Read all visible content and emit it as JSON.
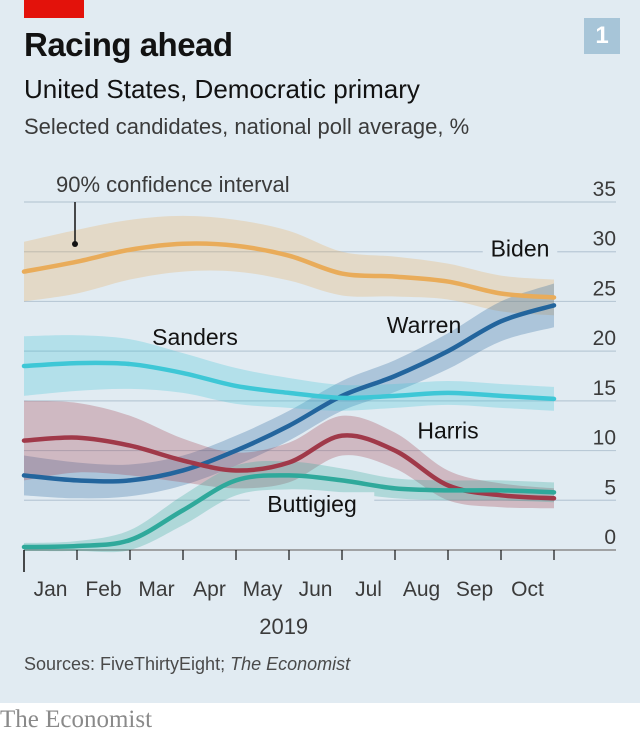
{
  "header": {
    "chart_number": "1",
    "title": "Racing ahead",
    "subtitle": "United States, Democratic primary",
    "description": "Selected candidates, national poll average, %"
  },
  "annotation": "90% confidence interval",
  "footer": {
    "sources_label": "Sources: FiveThirtyEight; ",
    "sources_italic": "The Economist",
    "brand": "The Economist"
  },
  "colors": {
    "background": "#e1ebf2",
    "Biden": "#e9ac5a",
    "Warren": "#23659d",
    "Sanders": "#3ec7d6",
    "Harris": "#a03949",
    "Buttigieg": "#2fa99b",
    "accent": "#e3120b"
  },
  "chart_data": {
    "type": "line",
    "title": "Racing ahead",
    "subtitle": "United States, Democratic primary",
    "ylabel": "Selected candidates, national poll average, %",
    "xlabel": "2019",
    "x": [
      0,
      1,
      2,
      3,
      4,
      5,
      6,
      7,
      8,
      9,
      10
    ],
    "x_tick_labels": [
      "Jan",
      "Feb",
      "Mar",
      "Apr",
      "May",
      "Jun",
      "Jul",
      "Aug",
      "Sep",
      "Oct"
    ],
    "year_label": "2019",
    "y_ticks": [
      0,
      5,
      10,
      15,
      20,
      25,
      30,
      35
    ],
    "ylim": [
      0,
      35
    ],
    "grid": true,
    "series": [
      {
        "name": "Biden",
        "values": [
          28.0,
          29.0,
          30.2,
          30.8,
          30.6,
          29.6,
          27.8,
          27.5,
          27.0,
          25.8,
          25.4
        ],
        "ci_width": [
          3.0,
          3.2,
          3.0,
          2.8,
          2.6,
          2.5,
          2.2,
          2.0,
          1.8,
          1.8,
          1.8
        ]
      },
      {
        "name": "Warren",
        "values": [
          7.5,
          7.0,
          7.0,
          8.0,
          10.0,
          12.5,
          15.5,
          17.5,
          20.0,
          23.0,
          24.6
        ],
        "ci_width": [
          2.0,
          1.8,
          1.6,
          1.5,
          1.5,
          1.5,
          1.5,
          1.6,
          1.8,
          2.0,
          2.2
        ]
      },
      {
        "name": "Sanders",
        "values": [
          18.5,
          18.8,
          18.7,
          17.8,
          16.5,
          15.8,
          15.3,
          15.5,
          15.8,
          15.5,
          15.2
        ],
        "ci_width": [
          3.0,
          2.8,
          2.5,
          2.0,
          1.8,
          1.5,
          1.3,
          1.2,
          1.2,
          1.2,
          1.2
        ]
      },
      {
        "name": "Harris",
        "values": [
          11.0,
          11.3,
          10.5,
          9.0,
          8.0,
          8.8,
          11.5,
          10.0,
          6.5,
          5.5,
          5.2
        ],
        "ci_width": [
          4.0,
          3.5,
          3.0,
          2.2,
          1.8,
          2.0,
          2.0,
          1.8,
          1.5,
          1.2,
          1.0
        ]
      },
      {
        "name": "Buttigieg",
        "values": [
          0.3,
          0.4,
          1.0,
          4.0,
          7.0,
          7.5,
          7.0,
          6.2,
          6.0,
          6.0,
          5.8
        ],
        "ci_width": [
          0.4,
          0.5,
          1.0,
          1.5,
          1.5,
          1.4,
          1.2,
          1.0,
          1.0,
          1.0,
          1.0
        ]
      }
    ],
    "series_labels": [
      "Biden",
      "Warren",
      "Sanders",
      "Harris",
      "Buttigieg"
    ]
  }
}
